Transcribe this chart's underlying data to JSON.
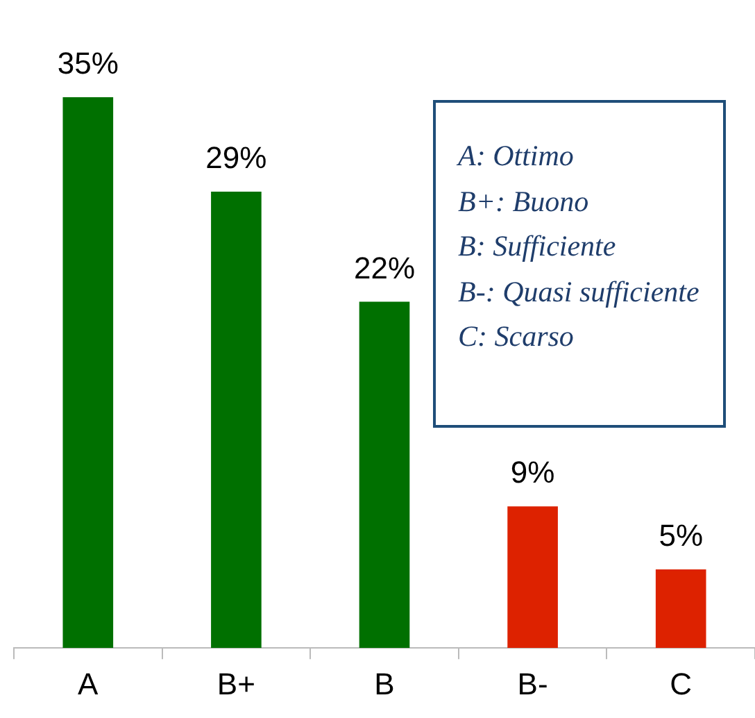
{
  "chart_data": {
    "type": "bar",
    "categories": [
      "A",
      "B+",
      "B",
      "B-",
      "C"
    ],
    "values": [
      35,
      29,
      22,
      9,
      5
    ],
    "colors": [
      "#007000",
      "#007000",
      "#007000",
      "#dd2200",
      "#dd2200"
    ],
    "value_labels": [
      "35%",
      "29%",
      "22%",
      "9%",
      "5%"
    ],
    "annotations": [
      "A: Ottimo",
      "B+: Buono",
      "B: Sufficiente",
      "B-: Quasi sufficiente",
      "C: Scarso"
    ],
    "grid": false,
    "legend": false
  }
}
